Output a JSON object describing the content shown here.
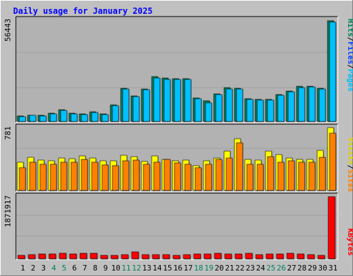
{
  "chart_data": [
    {
      "type": "bar",
      "title": "Daily usage for January 2025",
      "ylabel_max": "56443",
      "ylabel_parts": [
        "Hits",
        "Files",
        "Pages"
      ],
      "ylabel_separators": [
        "/",
        "/"
      ],
      "categories": [
        "1",
        "2",
        "3",
        "4",
        "5",
        "6",
        "7",
        "8",
        "9",
        "10",
        "11",
        "12",
        "13",
        "14",
        "15",
        "16",
        "17",
        "18",
        "19",
        "20",
        "21",
        "22",
        "23",
        "24",
        "25",
        "26",
        "27",
        "28",
        "29",
        "30",
        "31"
      ],
      "weekend_days": [
        "4",
        "5",
        "11",
        "12",
        "18",
        "19",
        "25",
        "26"
      ],
      "ylim": [
        0,
        56443
      ],
      "grid": true,
      "series": [
        {
          "name": "Hits",
          "values": [
            3100,
            3600,
            3500,
            4600,
            6500,
            4500,
            4300,
            5500,
            4100,
            9300,
            18500,
            14200,
            18100,
            25100,
            24300,
            24100,
            23800,
            13300,
            11600,
            15600,
            19100,
            18600,
            12900,
            12400,
            12300,
            15200,
            17100,
            19700,
            19800,
            18700,
            56443
          ]
        },
        {
          "name": "Files",
          "values": [
            2700,
            3300,
            3200,
            4100,
            6200,
            4100,
            3900,
            5100,
            3700,
            8900,
            18000,
            13800,
            17600,
            24300,
            23600,
            23600,
            23400,
            12600,
            10400,
            15100,
            18300,
            18100,
            12500,
            11900,
            11800,
            14700,
            16600,
            19000,
            19200,
            18200,
            55600
          ]
        },
        {
          "name": "Pages",
          "values": [
            0,
            0,
            0,
            0,
            0,
            0,
            0,
            0,
            0,
            0,
            0,
            0,
            0,
            0,
            0,
            0,
            0,
            0,
            0,
            0,
            0,
            0,
            0,
            0,
            0,
            0,
            0,
            0,
            0,
            0,
            0
          ]
        }
      ]
    },
    {
      "type": "bar",
      "ylabel_max": "781",
      "ylabel_parts": [
        "Visits",
        "Sites"
      ],
      "ylabel_separators": [
        "/"
      ],
      "ylim": [
        0,
        781
      ],
      "series": [
        {
          "name": "Visits",
          "values": [
            350,
            415,
            375,
            365,
            400,
            395,
            430,
            400,
            370,
            365,
            440,
            420,
            360,
            430,
            385,
            370,
            380,
            305,
            370,
            405,
            490,
            640,
            385,
            375,
            490,
            450,
            405,
            390,
            385,
            500,
            781
          ]
        },
        {
          "name": "Sites",
          "values": [
            280,
            350,
            325,
            325,
            350,
            350,
            390,
            350,
            315,
            305,
            365,
            380,
            325,
            355,
            385,
            345,
            330,
            285,
            325,
            385,
            405,
            590,
            325,
            325,
            420,
            355,
            365,
            355,
            350,
            415,
            715
          ]
        }
      ]
    },
    {
      "type": "bar",
      "ylabel_max": "1871917",
      "ylabel_parts": [
        "KBytes"
      ],
      "ylim": [
        0,
        1871917
      ],
      "series": [
        {
          "name": "KBytes",
          "values": [
            100000,
            120000,
            150000,
            150000,
            160000,
            150000,
            160000,
            170000,
            110000,
            110000,
            120000,
            210000,
            130000,
            120000,
            120000,
            110000,
            120000,
            140000,
            140000,
            160000,
            150000,
            140000,
            160000,
            120000,
            150000,
            150000,
            160000,
            150000,
            130000,
            100000,
            1871917
          ]
        }
      ]
    }
  ],
  "colors": {
    "background": "#c0c0c0",
    "title": "#0000ff",
    "hits": "#00805c",
    "files": "#0040ff",
    "pages": "#00c0ff",
    "visits": "#ffff00",
    "sites": "#ff8000",
    "kbytes": "#ff0000",
    "weekend_label": "#00805c",
    "weekday_label": "#000000"
  }
}
